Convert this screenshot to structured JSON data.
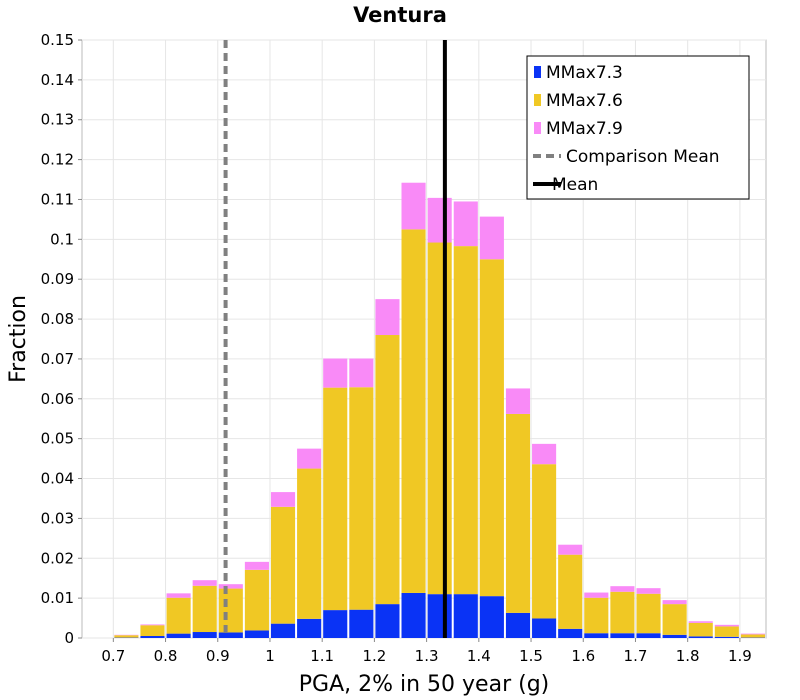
{
  "chart_data": {
    "type": "bar",
    "stacked": true,
    "title": "Ventura",
    "xlabel": "PGA, 2% in 50 year (g)",
    "ylabel": "Fraction",
    "xlim": [
      0.64,
      1.95
    ],
    "ylim": [
      0,
      0.15
    ],
    "x_ticks": [
      "0.7",
      "0.8",
      "0.9",
      "1",
      "1.1",
      "1.2",
      "1.3",
      "1.4",
      "1.5",
      "1.6",
      "1.7",
      "1.8",
      "1.9"
    ],
    "y_ticks": [
      "0",
      "0.01",
      "0.02",
      "0.03",
      "0.04",
      "0.05",
      "0.06",
      "0.07",
      "0.08",
      "0.09",
      "0.1",
      "0.11",
      "0.12",
      "0.13",
      "0.14",
      "0.15"
    ],
    "bin_width": 0.05,
    "bin_starts": [
      0.7,
      0.75,
      0.8,
      0.85,
      0.9,
      0.95,
      1.0,
      1.05,
      1.1,
      1.15,
      1.2,
      1.25,
      1.3,
      1.35,
      1.4,
      1.45,
      1.5,
      1.55,
      1.6,
      1.65,
      1.7,
      1.75,
      1.8,
      1.85,
      1.9
    ],
    "series": [
      {
        "name": "MMax7.3",
        "color": "#0a33f5",
        "values": [
          0.0001,
          0.0005,
          0.0011,
          0.0015,
          0.0014,
          0.0019,
          0.0036,
          0.0048,
          0.007,
          0.0071,
          0.0085,
          0.0113,
          0.011,
          0.011,
          0.0105,
          0.0063,
          0.0049,
          0.0023,
          0.0012,
          0.0012,
          0.0012,
          0.0008,
          0.0004,
          0.0003,
          0.0001
        ]
      },
      {
        "name": "MMax7.6",
        "color": "#f0c824",
        "values": [
          0.0006,
          0.0027,
          0.009,
          0.0116,
          0.011,
          0.0152,
          0.0293,
          0.0377,
          0.0558,
          0.0558,
          0.0675,
          0.0912,
          0.0882,
          0.0873,
          0.0845,
          0.0499,
          0.0387,
          0.0186,
          0.0089,
          0.0104,
          0.0099,
          0.0077,
          0.0034,
          0.0026,
          0.0008
        ]
      },
      {
        "name": "MMax7.9",
        "color": "#f98af7",
        "values": [
          0.0001,
          0.0002,
          0.0011,
          0.0014,
          0.0011,
          0.002,
          0.0037,
          0.005,
          0.0073,
          0.0072,
          0.009,
          0.0117,
          0.0112,
          0.0112,
          0.0107,
          0.0064,
          0.0051,
          0.0025,
          0.0013,
          0.0014,
          0.0014,
          0.001,
          0.0004,
          0.0004,
          0.0002
        ]
      }
    ],
    "lines": [
      {
        "name": "Comparison Mean",
        "x": 0.915,
        "style": "dashed",
        "color": "#808080"
      },
      {
        "name": "Mean",
        "x": 1.335,
        "style": "solid",
        "color": "#000000"
      }
    ],
    "grid": true,
    "legend_position": "top-right"
  }
}
